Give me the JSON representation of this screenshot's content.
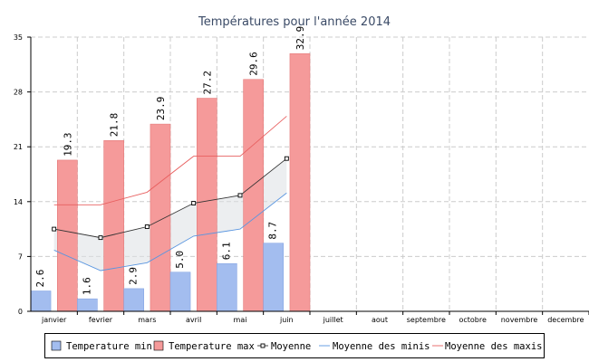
{
  "chart_data": {
    "type": "bar",
    "title": "Températures pour l'année 2014",
    "categories": [
      "janvier",
      "fevrier",
      "mars",
      "avril",
      "mai",
      "juin",
      "juillet",
      "aout",
      "septembre",
      "octobre",
      "novembre",
      "decembre"
    ],
    "ylim": [
      0,
      35
    ],
    "yticks": [
      "0",
      "7",
      "14",
      "21",
      "28",
      "35"
    ],
    "grid": true,
    "legend_position": "bottom",
    "series": [
      {
        "name": "Temperature min",
        "kind": "bar",
        "color": "#a3bdef",
        "edge": "#7f9fe0",
        "values": [
          2.6,
          1.6,
          2.9,
          5.0,
          6.1,
          8.7,
          null,
          null,
          null,
          null,
          null,
          null
        ],
        "labels": [
          "2.6",
          "1.6",
          "2.9",
          "5.0",
          "6.1",
          "8.7"
        ]
      },
      {
        "name": "Temperature max",
        "kind": "bar",
        "color": "#f59a9a",
        "edge": "#e07070",
        "values": [
          19.3,
          21.8,
          23.9,
          27.2,
          29.6,
          32.9,
          null,
          null,
          null,
          null,
          null,
          null
        ],
        "labels": [
          "19.3",
          "21.8",
          "23.9",
          "27.2",
          "29.6",
          "32.9"
        ]
      },
      {
        "name": "Moyenne",
        "kind": "line",
        "color": "#333333",
        "marker": "square",
        "values": [
          10.5,
          9.4,
          10.8,
          13.8,
          14.8,
          19.5,
          null,
          null,
          null,
          null,
          null,
          null
        ]
      },
      {
        "name": "Moyenne des minis",
        "kind": "line",
        "color": "#5a96e0",
        "values": [
          7.8,
          5.2,
          6.2,
          9.6,
          10.5,
          15.1,
          null,
          null,
          null,
          null,
          null,
          null
        ]
      },
      {
        "name": "Moyenne des maxis",
        "kind": "line",
        "color": "#e86060",
        "values": [
          13.6,
          13.6,
          15.2,
          19.8,
          19.8,
          24.9,
          null,
          null,
          null,
          null,
          null,
          null
        ]
      }
    ]
  }
}
